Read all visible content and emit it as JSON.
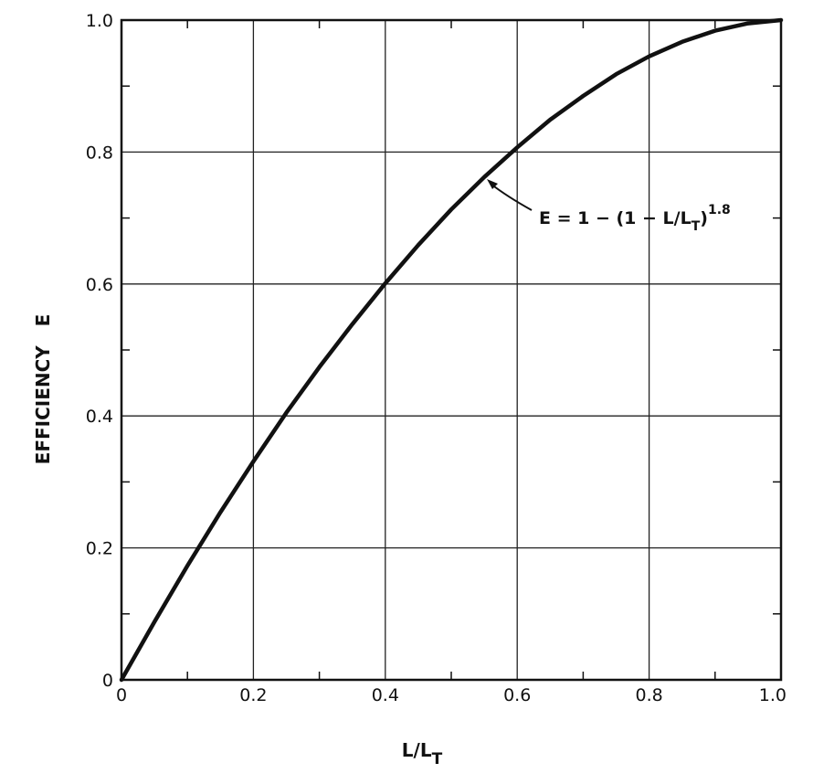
{
  "chart_data": {
    "type": "line",
    "xlabel": "L/L",
    "xlabel_sub": "T",
    "ylabel": "EFFICIENCY   E",
    "xlim": [
      0,
      1
    ],
    "ylim": [
      0,
      1
    ],
    "grid": true,
    "x_ticks": [
      0,
      0.2,
      0.4,
      0.6,
      0.8,
      1.0
    ],
    "x_tick_labels": [
      "0",
      "0.2",
      "0.4",
      "0.6",
      "0.8",
      "1.0"
    ],
    "y_ticks": [
      0,
      0.2,
      0.4,
      0.6,
      0.8,
      1.0
    ],
    "y_tick_labels": [
      "0",
      "0.2",
      "0.4",
      "0.6",
      "0.8",
      "1.0"
    ],
    "series": [
      {
        "x": [
          0,
          0.05,
          0.1,
          0.15,
          0.2,
          0.25,
          0.3,
          0.35,
          0.4,
          0.45,
          0.5,
          0.55,
          0.6,
          0.65,
          0.7,
          0.75,
          0.8,
          0.85,
          0.9,
          0.95,
          1.0
        ],
        "y": [
          0,
          0.088,
          0.173,
          0.254,
          0.331,
          0.405,
          0.474,
          0.539,
          0.601,
          0.659,
          0.713,
          0.762,
          0.807,
          0.849,
          0.885,
          0.918,
          0.945,
          0.967,
          0.984,
          0.995,
          1.0
        ]
      }
    ],
    "annotations": [
      {
        "text_main": "E = 1 − (1 − L/L",
        "text_sub": "T",
        "text_close": ")",
        "text_sup": "1.8"
      }
    ]
  }
}
